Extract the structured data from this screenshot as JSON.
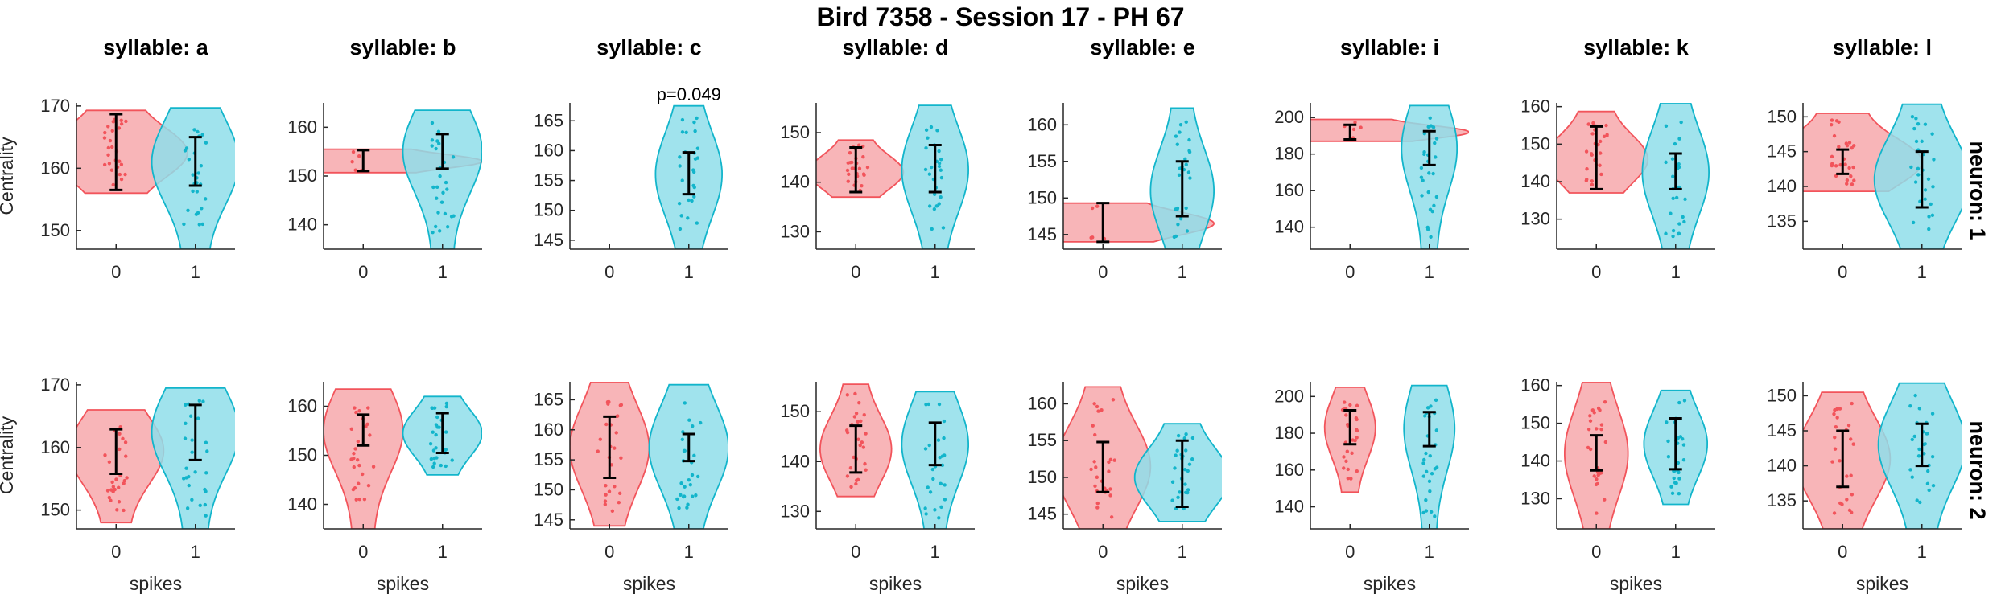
{
  "figure": {
    "title": "Bird 7358 - Session 17 - PH 67",
    "xlabel": "spikes",
    "ylabel": "Centrality",
    "row_labels": [
      "neuron: 1",
      "neuron: 2"
    ],
    "colors": {
      "spikes_0": "#f2545b",
      "spikes_0_fill": "#f7a8ac",
      "spikes_1": "#12b5cb",
      "spikes_1_fill": "#8fdeea",
      "errorbar": "#000000"
    }
  },
  "chart_data": [
    {
      "type": "violin",
      "syllable": "a",
      "title": "syllable: a",
      "neuron": 1,
      "ylabel": "Centrality",
      "xlabel": "",
      "categories": [
        "0",
        "1"
      ],
      "ylim": [
        147,
        170.5
      ],
      "yticks": [
        150,
        160,
        170
      ],
      "groups": [
        {
          "spikes": "0",
          "mean": 162.5,
          "ci": [
            156.5,
            168.7
          ],
          "min": 156,
          "max": 169.3,
          "width": 0.9
        },
        {
          "spikes": "1",
          "mean": 161,
          "ci": [
            157.2,
            165
          ],
          "min": 147,
          "max": 169.7,
          "width": 0.55
        }
      ]
    },
    {
      "type": "violin",
      "syllable": "b",
      "title": "syllable: b",
      "neuron": 1,
      "ylabel": "",
      "xlabel": "",
      "categories": [
        "0",
        "1"
      ],
      "ylim": [
        135,
        165
      ],
      "yticks": [
        140,
        150,
        160
      ],
      "groups": [
        {
          "spikes": "0",
          "mean": 153,
          "ci": [
            151,
            155.3
          ],
          "min": 150.7,
          "max": 155.5,
          "width": 1.5
        },
        {
          "spikes": "1",
          "mean": 155,
          "ci": [
            151.5,
            158.6
          ],
          "min": 135,
          "max": 163.5,
          "width": 0.5
        }
      ]
    },
    {
      "type": "violin",
      "syllable": "c",
      "title": "syllable: c",
      "neuron": 1,
      "ylabel": "",
      "xlabel": "",
      "categories": [
        "0",
        "1"
      ],
      "ylim": [
        143.5,
        168
      ],
      "yticks": [
        145,
        150,
        155,
        160,
        165
      ],
      "annotation": "p=0.049",
      "groups": [
        {
          "spikes": "0",
          "mean": null,
          "ci": null,
          "min": null,
          "max": null,
          "width": 0
        },
        {
          "spikes": "1",
          "mean": 156,
          "ci": [
            152.7,
            159.7
          ],
          "min": 143.5,
          "max": 167.5,
          "width": 0.42
        }
      ]
    },
    {
      "type": "violin",
      "syllable": "d",
      "title": "syllable: d",
      "neuron": 1,
      "ylabel": "",
      "xlabel": "",
      "categories": [
        "0",
        "1"
      ],
      "ylim": [
        126.5,
        156
      ],
      "yticks": [
        130,
        140,
        150
      ],
      "groups": [
        {
          "spikes": "0",
          "mean": 142,
          "ci": [
            138,
            147
          ],
          "min": 137,
          "max": 148.5,
          "width": 0.6
        },
        {
          "spikes": "1",
          "mean": 142.5,
          "ci": [
            138,
            147.5
          ],
          "min": 126.5,
          "max": 155.5,
          "width": 0.42
        }
      ]
    },
    {
      "type": "violin",
      "syllable": "e",
      "title": "syllable: e",
      "neuron": 1,
      "ylabel": "",
      "xlabel": "",
      "categories": [
        "0",
        "1"
      ],
      "ylim": [
        143,
        163
      ],
      "yticks": [
        145,
        150,
        155,
        160
      ],
      "groups": [
        {
          "spikes": "0",
          "mean": 146.5,
          "ci": [
            144,
            149.3
          ],
          "min": 144,
          "max": 149.3,
          "width": 1.4
        },
        {
          "spikes": "1",
          "mean": 151,
          "ci": [
            147.5,
            155
          ],
          "min": 143,
          "max": 162.3,
          "width": 0.4
        }
      ]
    },
    {
      "type": "violin",
      "syllable": "i",
      "title": "syllable: i",
      "neuron": 1,
      "ylabel": "",
      "xlabel": "",
      "categories": [
        "0",
        "1"
      ],
      "ylim": [
        128,
        208
      ],
      "yticks": [
        140,
        160,
        180,
        200
      ],
      "groups": [
        {
          "spikes": "0",
          "mean": 192,
          "ci": [
            188,
            196
          ],
          "min": 187,
          "max": 199,
          "width": 1.5
        },
        {
          "spikes": "1",
          "mean": 183,
          "ci": [
            174,
            192.5
          ],
          "min": 128,
          "max": 206.5,
          "width": 0.35
        }
      ]
    },
    {
      "type": "violin",
      "syllable": "k",
      "title": "syllable: k",
      "neuron": 1,
      "ylabel": "",
      "xlabel": "",
      "categories": [
        "0",
        "1"
      ],
      "ylim": [
        122,
        161
      ],
      "yticks": [
        130,
        140,
        150,
        160
      ],
      "groups": [
        {
          "spikes": "0",
          "mean": 146,
          "ci": [
            138,
            154.7
          ],
          "min": 137,
          "max": 158.7,
          "width": 0.65
        },
        {
          "spikes": "1",
          "mean": 142.5,
          "ci": [
            138,
            147.5
          ],
          "min": 122,
          "max": 161,
          "width": 0.42
        }
      ]
    },
    {
      "type": "violin",
      "syllable": "l",
      "title": "syllable: l",
      "neuron": 1,
      "ylabel": "",
      "xlabel": "",
      "categories": [
        "0",
        "1"
      ],
      "ylim": [
        131,
        152
      ],
      "yticks": [
        135,
        140,
        145,
        150
      ],
      "groups": [
        {
          "spikes": "0",
          "mean": 143.5,
          "ci": [
            141.8,
            145.3
          ],
          "min": 139.3,
          "max": 150.5,
          "width": 1.0
        },
        {
          "spikes": "1",
          "mean": 141,
          "ci": [
            137,
            145
          ],
          "min": 131,
          "max": 151.8,
          "width": 0.6
        }
      ]
    },
    {
      "type": "violin",
      "syllable": "a",
      "title": "",
      "neuron": 2,
      "ylabel": "Centrality",
      "xlabel": "spikes",
      "categories": [
        "0",
        "1"
      ],
      "ylim": [
        147,
        170.5
      ],
      "yticks": [
        150,
        160,
        170
      ],
      "groups": [
        {
          "spikes": "0",
          "mean": 159.5,
          "ci": [
            155.8,
            162.9
          ],
          "min": 148,
          "max": 166,
          "width": 0.6
        },
        {
          "spikes": "1",
          "mean": 162.5,
          "ci": [
            158,
            166.8
          ],
          "min": 147,
          "max": 169.5,
          "width": 0.55
        }
      ]
    },
    {
      "type": "violin",
      "syllable": "b",
      "title": "",
      "neuron": 2,
      "ylabel": "",
      "xlabel": "spikes",
      "categories": [
        "0",
        "1"
      ],
      "ylim": [
        135,
        165
      ],
      "yticks": [
        140,
        150,
        160
      ],
      "groups": [
        {
          "spikes": "0",
          "mean": 155,
          "ci": [
            152,
            158.3
          ],
          "min": 135,
          "max": 163.5,
          "width": 0.5
        },
        {
          "spikes": "1",
          "mean": 154.5,
          "ci": [
            150.5,
            158.6
          ],
          "min": 146,
          "max": 162,
          "width": 0.5
        }
      ]
    },
    {
      "type": "violin",
      "syllable": "c",
      "title": "",
      "neuron": 2,
      "ylabel": "",
      "xlabel": "spikes",
      "categories": [
        "0",
        "1"
      ],
      "ylim": [
        143.5,
        168
      ],
      "yticks": [
        145,
        150,
        155,
        160,
        165
      ],
      "groups": [
        {
          "spikes": "0",
          "mean": 157,
          "ci": [
            152,
            162.2
          ],
          "min": 144,
          "max": 168,
          "width": 0.5
        },
        {
          "spikes": "1",
          "mean": 157,
          "ci": [
            154.8,
            159.3
          ],
          "min": 143.5,
          "max": 167.5,
          "width": 0.5
        }
      ]
    },
    {
      "type": "violin",
      "syllable": "d",
      "title": "",
      "neuron": 2,
      "ylabel": "",
      "xlabel": "spikes",
      "categories": [
        "0",
        "1"
      ],
      "ylim": [
        126.5,
        156
      ],
      "yticks": [
        130,
        140,
        150
      ],
      "groups": [
        {
          "spikes": "0",
          "mean": 142.5,
          "ci": [
            137.8,
            147.2
          ],
          "min": 133,
          "max": 155.5,
          "width": 0.45
        },
        {
          "spikes": "1",
          "mean": 143.5,
          "ci": [
            139.3,
            147.8
          ],
          "min": 126.5,
          "max": 154,
          "width": 0.42
        }
      ]
    },
    {
      "type": "violin",
      "syllable": "e",
      "title": "",
      "neuron": 2,
      "ylabel": "",
      "xlabel": "spikes",
      "categories": [
        "0",
        "1"
      ],
      "ylim": [
        143,
        163
      ],
      "yticks": [
        145,
        150,
        155,
        160
      ],
      "groups": [
        {
          "spikes": "0",
          "mean": 151.5,
          "ci": [
            148,
            154.8
          ],
          "min": 143,
          "max": 162.3,
          "width": 0.6
        },
        {
          "spikes": "1",
          "mean": 150,
          "ci": [
            146,
            155
          ],
          "min": 144,
          "max": 157.3,
          "width": 0.6
        }
      ]
    },
    {
      "type": "violin",
      "syllable": "i",
      "title": "",
      "neuron": 2,
      "ylabel": "",
      "xlabel": "spikes",
      "categories": [
        "0",
        "1"
      ],
      "ylim": [
        128,
        208
      ],
      "yticks": [
        140,
        160,
        180,
        200
      ],
      "groups": [
        {
          "spikes": "0",
          "mean": 183,
          "ci": [
            174,
            192.5
          ],
          "min": 148,
          "max": 205,
          "width": 0.32
        },
        {
          "spikes": "1",
          "mean": 182.5,
          "ci": [
            173,
            191.5
          ],
          "min": 128,
          "max": 206,
          "width": 0.32
        }
      ]
    },
    {
      "type": "violin",
      "syllable": "k",
      "title": "",
      "neuron": 2,
      "ylabel": "",
      "xlabel": "spikes",
      "categories": [
        "0",
        "1"
      ],
      "ylim": [
        122,
        161
      ],
      "yticks": [
        130,
        140,
        150,
        160
      ],
      "groups": [
        {
          "spikes": "0",
          "mean": 142,
          "ci": [
            137.5,
            146.8
          ],
          "min": 122,
          "max": 161,
          "width": 0.4
        },
        {
          "spikes": "1",
          "mean": 144.5,
          "ci": [
            137.8,
            151.3
          ],
          "min": 128.5,
          "max": 158.7,
          "width": 0.4
        }
      ]
    },
    {
      "type": "violin",
      "syllable": "l",
      "title": "",
      "neuron": 2,
      "ylabel": "",
      "xlabel": "spikes",
      "categories": [
        "0",
        "1"
      ],
      "ylim": [
        131,
        152
      ],
      "yticks": [
        135,
        140,
        145,
        150
      ],
      "groups": [
        {
          "spikes": "0",
          "mean": 141,
          "ci": [
            137,
            145
          ],
          "min": 131,
          "max": 150.5,
          "width": 0.6
        },
        {
          "spikes": "1",
          "mean": 143,
          "ci": [
            140,
            146
          ],
          "min": 131,
          "max": 151.8,
          "width": 0.55
        }
      ]
    }
  ]
}
